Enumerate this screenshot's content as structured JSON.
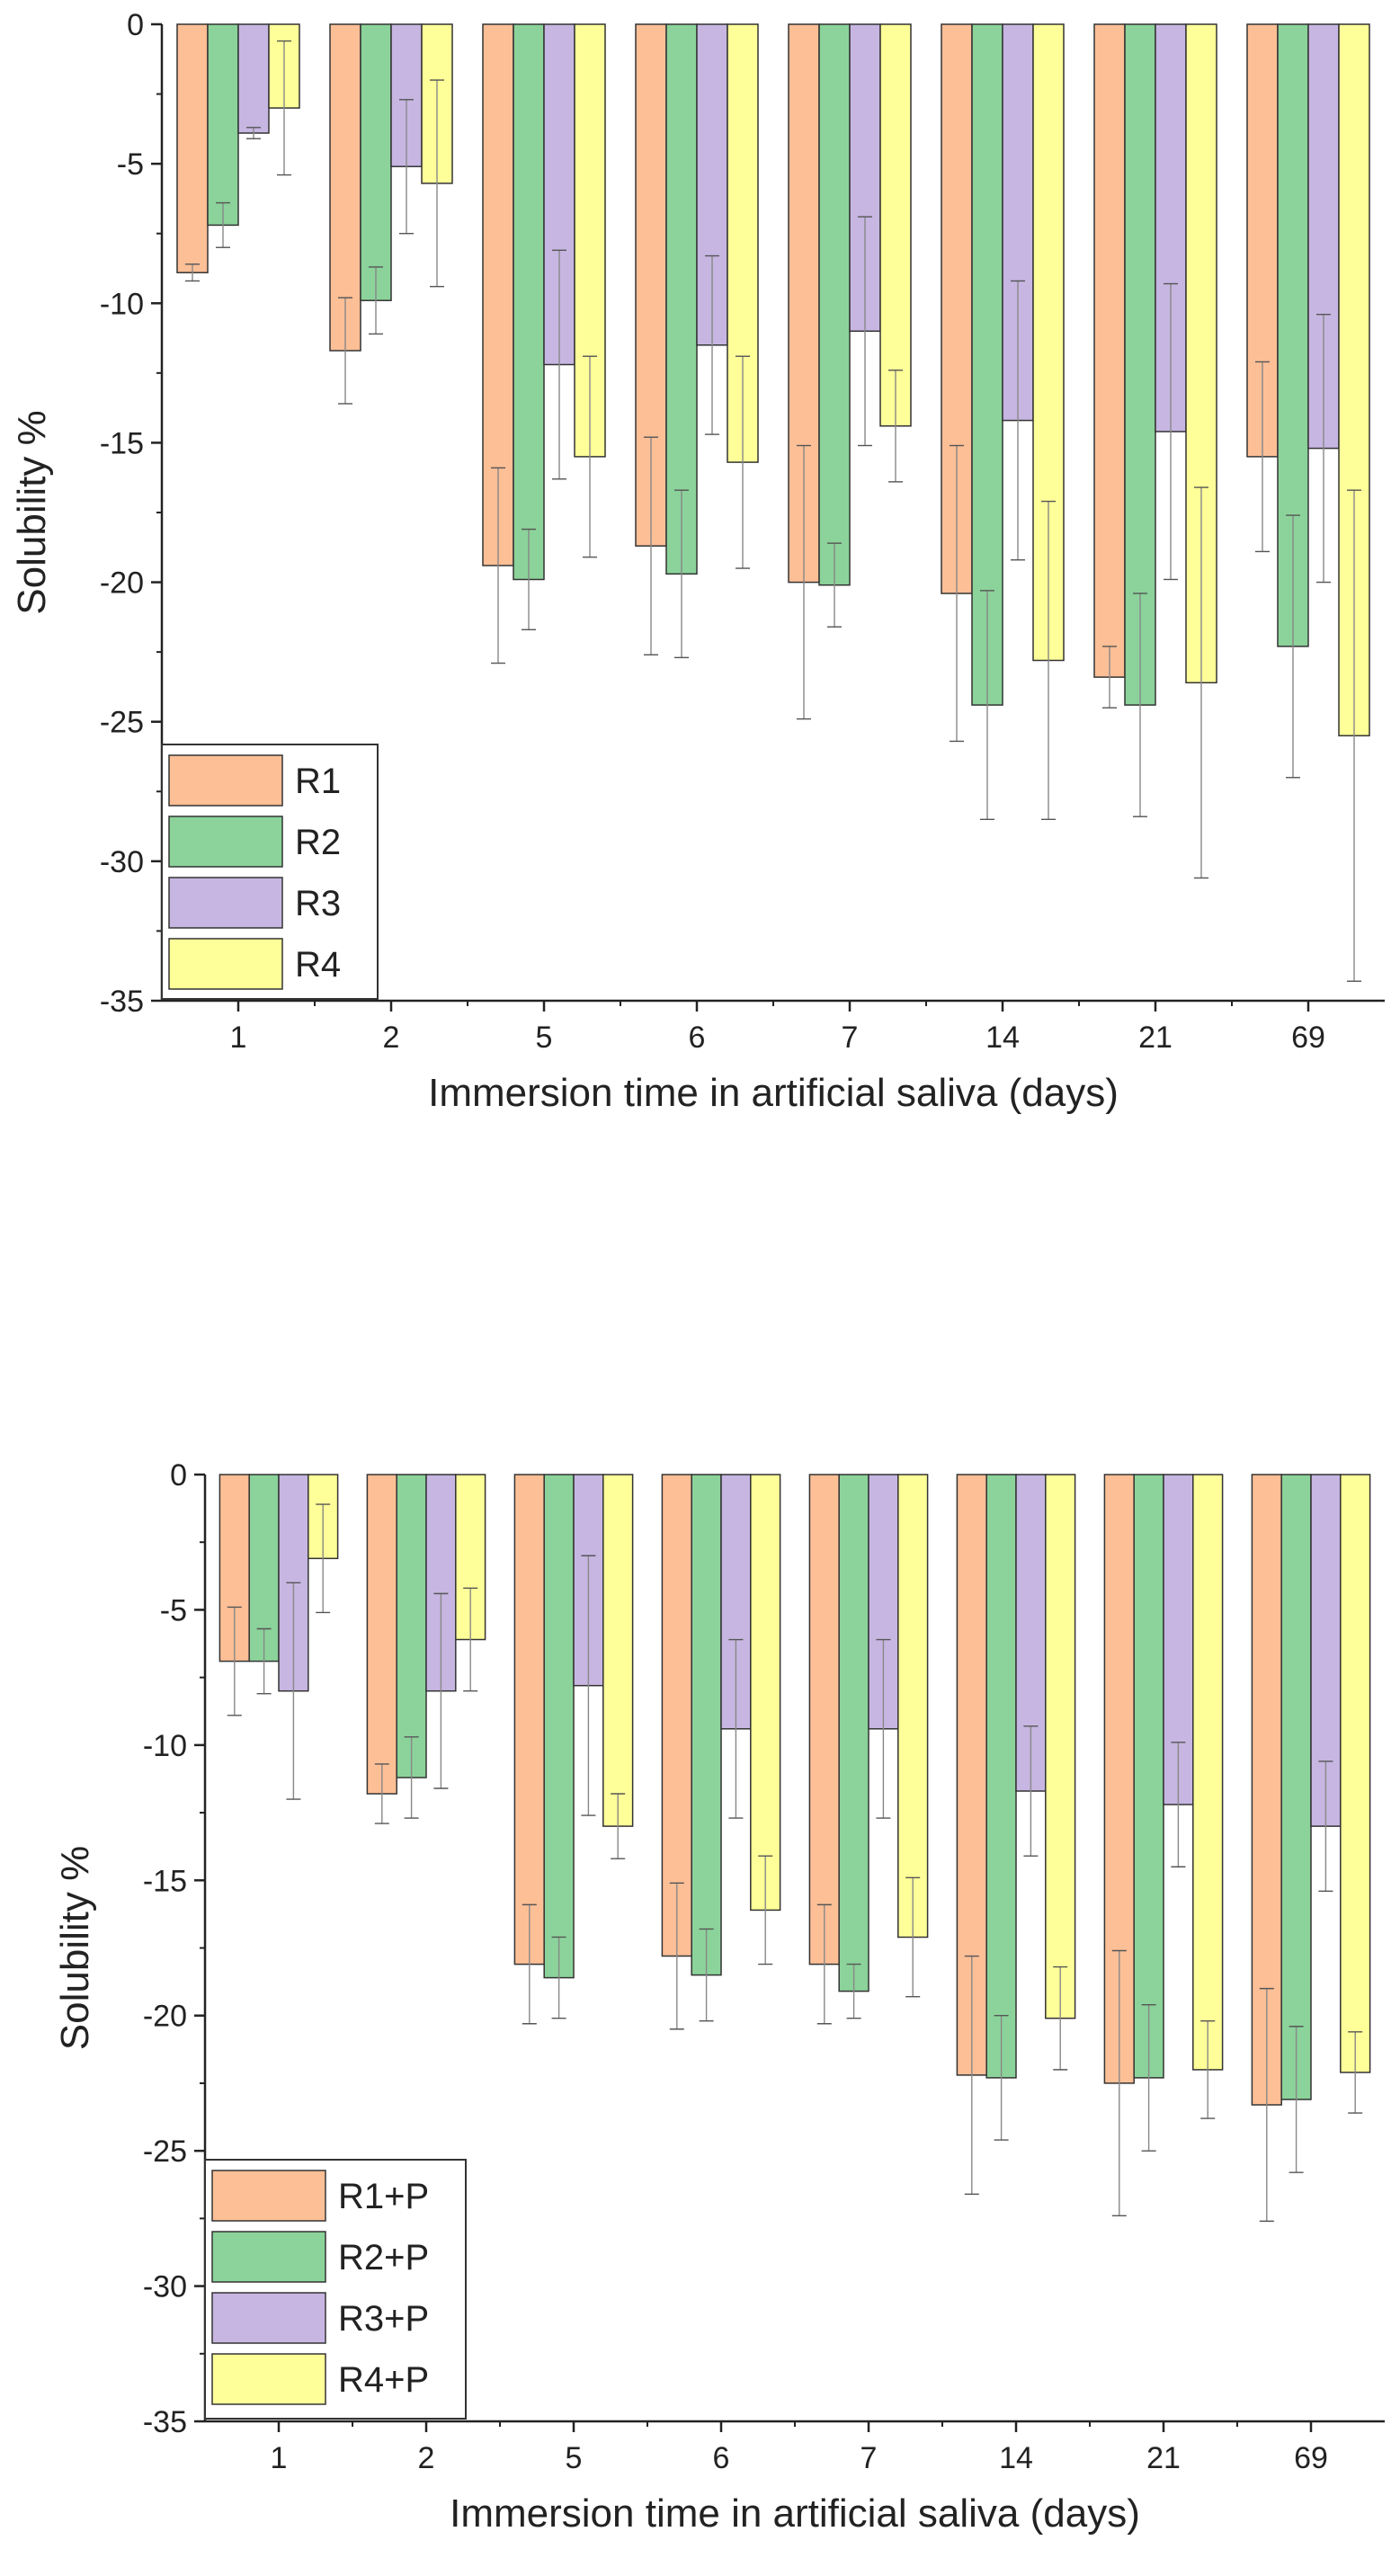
{
  "chart_data": [
    {
      "type": "bar",
      "title": "",
      "xlabel": "Immersion time in artificial saliva (days)",
      "ylabel": "Solubility %",
      "ylim": [
        -35,
        0
      ],
      "yticks": [
        0,
        -5,
        -10,
        -15,
        -20,
        -25,
        -30,
        -35
      ],
      "categories": [
        "1",
        "2",
        "5",
        "6",
        "7",
        "14",
        "21",
        "69"
      ],
      "legend_position": "bottom-left",
      "error_bars": true,
      "series": [
        {
          "name": "R1",
          "color": "#FDBF96",
          "values": [
            -8.9,
            -11.7,
            -19.4,
            -18.7,
            -20.0,
            -20.4,
            -23.4,
            -15.5
          ],
          "errors": [
            0.3,
            1.9,
            3.5,
            3.9,
            4.9,
            5.3,
            1.1,
            3.4
          ]
        },
        {
          "name": "R2",
          "color": "#8BD39A",
          "values": [
            -7.2,
            -9.9,
            -19.9,
            -19.7,
            -20.1,
            -24.4,
            -24.4,
            -22.3
          ],
          "errors": [
            0.8,
            1.2,
            1.8,
            3.0,
            1.5,
            4.1,
            4.0,
            4.7
          ]
        },
        {
          "name": "R3",
          "color": "#C7B6E2",
          "values": [
            -3.9,
            -5.1,
            -12.2,
            -11.5,
            -11.0,
            -14.2,
            -14.6,
            -15.2
          ],
          "errors": [
            0.2,
            2.4,
            4.1,
            3.2,
            4.1,
            5.0,
            5.3,
            4.8
          ]
        },
        {
          "name": "R4",
          "color": "#FFFF99",
          "values": [
            -3.0,
            -5.7,
            -15.5,
            -15.7,
            -14.4,
            -22.8,
            -23.6,
            -25.5
          ],
          "errors": [
            2.4,
            3.7,
            3.6,
            3.8,
            2.0,
            5.7,
            7.0,
            8.8
          ]
        }
      ]
    },
    {
      "type": "bar",
      "title": "",
      "xlabel": "Immersion time in artificial saliva (days)",
      "ylabel": "Solubility %",
      "ylim": [
        -35,
        0
      ],
      "yticks": [
        0,
        -5,
        -10,
        -15,
        -20,
        -25,
        -30,
        -35
      ],
      "categories": [
        "1",
        "2",
        "5",
        "6",
        "7",
        "14",
        "21",
        "69"
      ],
      "legend_position": "bottom-left",
      "error_bars": true,
      "series": [
        {
          "name": "R1+P",
          "color": "#FDBF96",
          "values": [
            -6.9,
            -11.8,
            -18.1,
            -17.8,
            -18.1,
            -22.2,
            -22.5,
            -23.3
          ],
          "errors": [
            2.0,
            1.1,
            2.2,
            2.7,
            2.2,
            4.4,
            4.9,
            4.3
          ]
        },
        {
          "name": "R2+P",
          "color": "#8BD39A",
          "values": [
            -6.9,
            -11.2,
            -18.6,
            -18.5,
            -19.1,
            -22.3,
            -22.3,
            -23.1
          ],
          "errors": [
            1.2,
            1.5,
            1.5,
            1.7,
            1.0,
            2.3,
            2.7,
            2.7
          ]
        },
        {
          "name": "R3+P",
          "color": "#C7B6E2",
          "values": [
            -8.0,
            -8.0,
            -7.8,
            -9.4,
            -9.4,
            -11.7,
            -12.2,
            -13.0
          ],
          "errors": [
            4.0,
            3.6,
            4.8,
            3.3,
            3.3,
            2.4,
            2.3,
            2.4
          ]
        },
        {
          "name": "R4+P",
          "color": "#FFFF99",
          "values": [
            -3.1,
            -6.1,
            -13.0,
            -16.1,
            -17.1,
            -20.1,
            -22.0,
            -22.1
          ],
          "errors": [
            2.0,
            1.9,
            1.2,
            2.0,
            2.2,
            1.9,
            1.8,
            1.5
          ]
        }
      ]
    }
  ]
}
